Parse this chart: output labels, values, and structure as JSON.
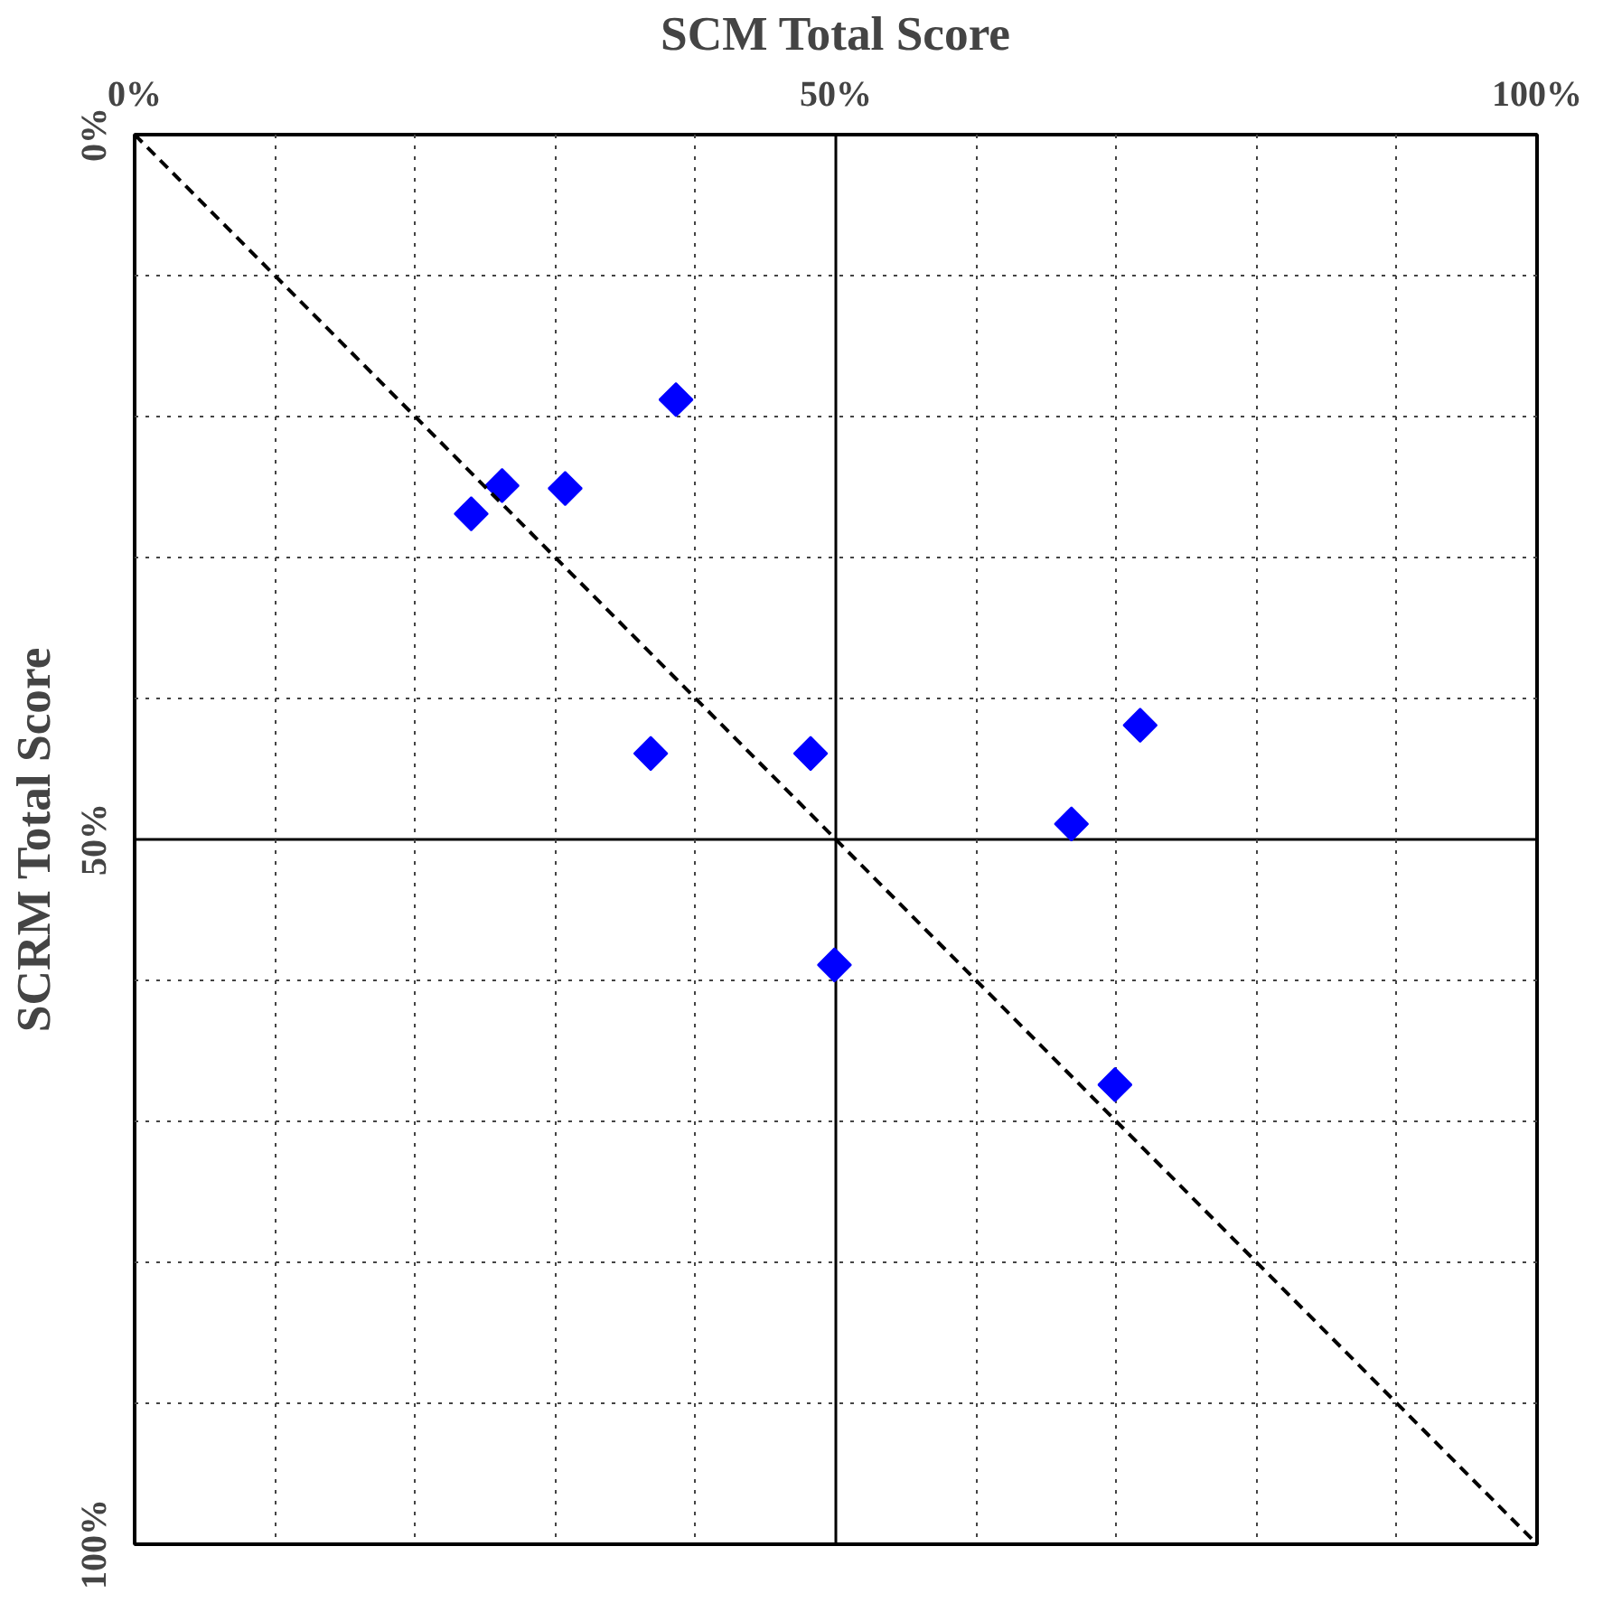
{
  "chart_data": {
    "type": "scatter",
    "xlabel": "SCM Total Score",
    "ylabel": "SCRM Total Score",
    "xlim": [
      0,
      100
    ],
    "ylim": [
      100,
      0
    ],
    "xticks": [
      {
        "value": 0,
        "label": "0%"
      },
      {
        "value": 10,
        "label": null
      },
      {
        "value": 20,
        "label": null
      },
      {
        "value": 30,
        "label": null
      },
      {
        "value": 40,
        "label": null
      },
      {
        "value": 50,
        "label": "50%"
      },
      {
        "value": 60,
        "label": null
      },
      {
        "value": 70,
        "label": null
      },
      {
        "value": 80,
        "label": null
      },
      {
        "value": 90,
        "label": null
      },
      {
        "value": 100,
        "label": "100%"
      }
    ],
    "yticks": [
      {
        "value": 0,
        "label": "0%"
      },
      {
        "value": 10,
        "label": null
      },
      {
        "value": 20,
        "label": null
      },
      {
        "value": 30,
        "label": null
      },
      {
        "value": 40,
        "label": null
      },
      {
        "value": 50,
        "label": "50%"
      },
      {
        "value": 60,
        "label": null
      },
      {
        "value": 70,
        "label": null
      },
      {
        "value": 80,
        "label": null
      },
      {
        "value": 90,
        "label": null
      },
      {
        "value": 100,
        "label": "100%"
      }
    ],
    "grid": true,
    "marker": "diamond",
    "series": [
      {
        "color": "#0000ff",
        "x": [
          38.6,
          26.2,
          24.0,
          30.7,
          36.8,
          48.2,
          71.7,
          66.8,
          49.9,
          69.9
        ],
        "values": [
          18.8,
          24.9,
          26.9,
          25.1,
          43.9,
          43.9,
          41.9,
          48.9,
          58.9,
          67.4
        ]
      },
      {
        "type": "line",
        "color": "#000000",
        "line_style": "dashed",
        "marker": "none",
        "x": [
          0,
          100
        ],
        "values": [
          0,
          100
        ]
      }
    ]
  }
}
